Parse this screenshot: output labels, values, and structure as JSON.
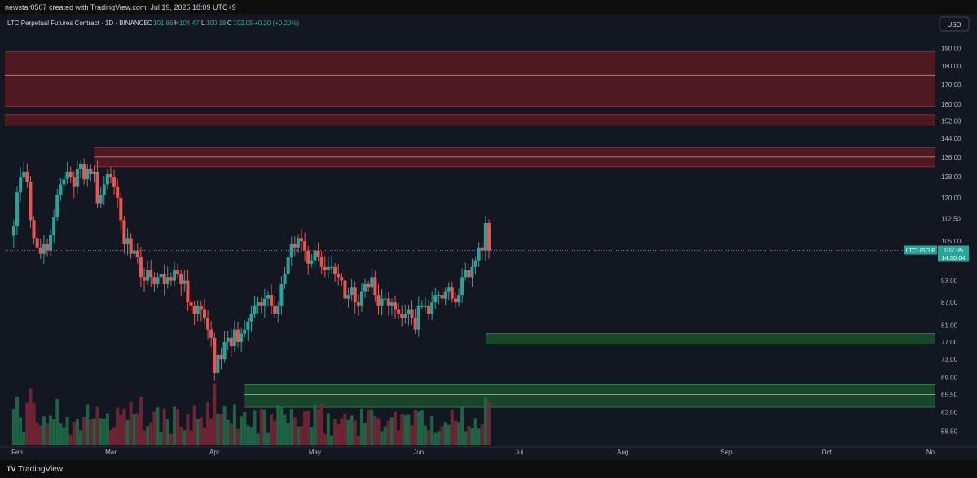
{
  "header": {
    "credit": "newstar0507 created with TradingView.com, Jul 19, 2025 18:09 UTC+9"
  },
  "legend": {
    "symbol": "LTC Perpetual Futures Contract · 1D · BINANCE",
    "o_label": "O",
    "o_value": "101.86",
    "h_label": "H",
    "h_value": "104.47",
    "l_label": "L",
    "l_value": "100.18",
    "c_label": "C",
    "c_value": "102.05",
    "change": "+0.20 (+0.20%)"
  },
  "currency": "USD",
  "price_tag": {
    "ticker": "LTCUSD.P",
    "price": "102.05",
    "countdown": "14:50:04"
  },
  "footer": {
    "brand": "TradingView",
    "logo": "TV"
  },
  "colors": {
    "up": "#26a69a",
    "down": "#ef5350",
    "bg": "#131722",
    "resistance": "#5a1a22",
    "support": "#1b4d2b",
    "tag": "#26a69a"
  },
  "chart_data": {
    "type": "candlestick",
    "y_scale": "log",
    "ylim": [
      56,
      198
    ],
    "y_ticks": [
      "190.00",
      "180.00",
      "170.00",
      "160.00",
      "152.00",
      "144.00",
      "136.00",
      "128.00",
      "120.00",
      "112.50",
      "105.00",
      "93.00",
      "87.00",
      "81.00",
      "77.00",
      "73.00",
      "69.00",
      "65.50",
      "62.00",
      "58.50"
    ],
    "x_ticks": [
      "Feb",
      "Mar",
      "Apr",
      "May",
      "Jun",
      "Jul",
      "Aug",
      "Sep",
      "Oct",
      "No"
    ],
    "x_range_days": [
      0,
      280
    ],
    "x_tick_days": [
      0,
      28,
      59,
      89,
      120,
      150,
      181,
      212,
      242,
      273
    ],
    "last_price": 102.05,
    "zones": [
      {
        "kind": "resistance",
        "low": 159,
        "high": 188,
        "mid": 175,
        "start_day": -4
      },
      {
        "kind": "resistance",
        "low": 150,
        "high": 155,
        "mid": 152,
        "start_day": -4
      },
      {
        "kind": "resistance",
        "low": 132,
        "high": 140,
        "mid": 136,
        "start_day": 23
      },
      {
        "kind": "support",
        "low": 76.5,
        "high": 79,
        "mid": 77.5,
        "start_day": 140
      },
      {
        "kind": "support",
        "low": 63,
        "high": 67.5,
        "mid": 65.5,
        "start_day": 68
      }
    ],
    "closes": [
      110,
      122,
      128,
      130,
      126,
      112,
      106,
      103,
      101,
      104,
      102,
      107,
      113,
      121,
      125,
      127,
      130,
      128,
      124,
      131,
      133,
      127,
      131,
      129,
      130,
      118,
      121,
      125,
      129,
      128,
      124,
      120,
      112,
      104,
      106,
      101,
      102,
      100,
      94,
      93,
      96,
      94,
      92,
      94,
      95,
      92,
      94,
      93,
      96,
      95,
      92,
      93,
      87,
      86,
      84,
      86,
      85,
      83,
      80,
      78,
      70,
      74,
      73,
      77,
      78,
      76,
      80,
      77,
      79,
      80,
      82,
      84,
      86,
      87,
      86,
      88,
      89,
      86,
      84,
      86,
      92,
      95,
      100,
      104,
      103,
      106,
      105,
      102,
      98,
      99,
      102,
      100,
      97,
      96,
      97,
      97,
      95,
      94,
      93,
      88,
      89,
      91,
      87,
      86,
      90,
      92,
      91,
      94,
      89,
      86,
      88,
      88,
      86,
      87,
      85,
      84,
      83,
      84,
      85,
      83,
      80,
      86,
      86,
      86,
      84,
      87,
      89,
      89,
      88,
      90,
      91,
      88,
      87,
      89,
      94,
      96,
      94,
      97,
      99,
      103,
      102,
      111,
      102
    ]
  }
}
